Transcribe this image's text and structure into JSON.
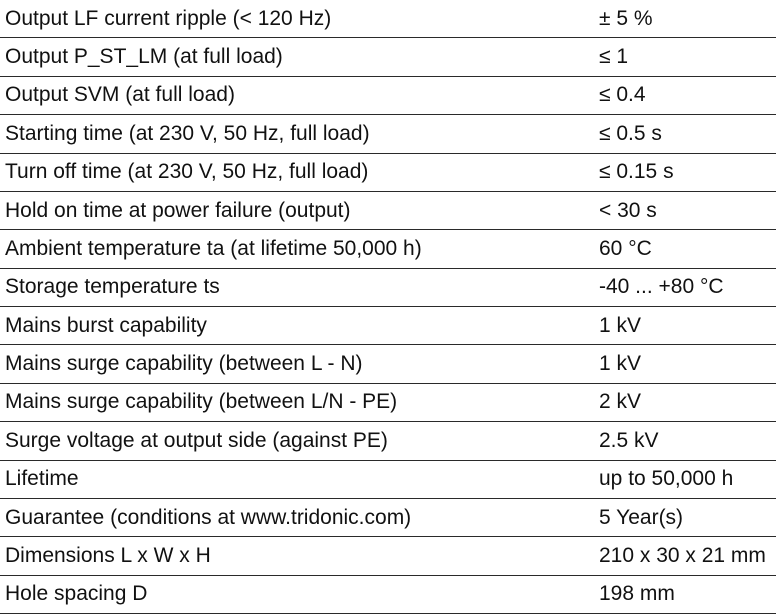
{
  "table": {
    "rows": [
      [
        "Output LF current ripple (< 120 Hz)",
        "± 5 %"
      ],
      [
        "Output P_ST_LM (at full load)",
        "≤ 1"
      ],
      [
        "Output SVM (at full load)",
        "≤ 0.4"
      ],
      [
        "Starting time (at 230 V, 50 Hz, full load)",
        "≤ 0.5 s"
      ],
      [
        "Turn off time (at 230 V, 50 Hz, full load)",
        "≤ 0.15 s"
      ],
      [
        "Hold on time at power failure (output)",
        "< 30 s"
      ],
      [
        "Ambient temperature ta (at lifetime 50,000 h)",
        "60 °C"
      ],
      [
        "Storage temperature ts",
        "-40 ... +80 °C"
      ],
      [
        "Mains burst capability",
        "1 kV"
      ],
      [
        "Mains surge capability (between L - N)",
        "1 kV"
      ],
      [
        "Mains surge capability (between L/N - PE)",
        "2 kV"
      ],
      [
        "Surge voltage at output side (against PE)",
        "2.5 kV"
      ],
      [
        "Lifetime",
        "up to 50,000 h"
      ],
      [
        "Guarantee (conditions at www.tridonic.com)",
        "5 Year(s)"
      ],
      [
        "Dimensions L x W x H",
        "210 x 30 x 21 mm"
      ],
      [
        "Hole spacing D",
        "198 mm"
      ]
    ]
  }
}
